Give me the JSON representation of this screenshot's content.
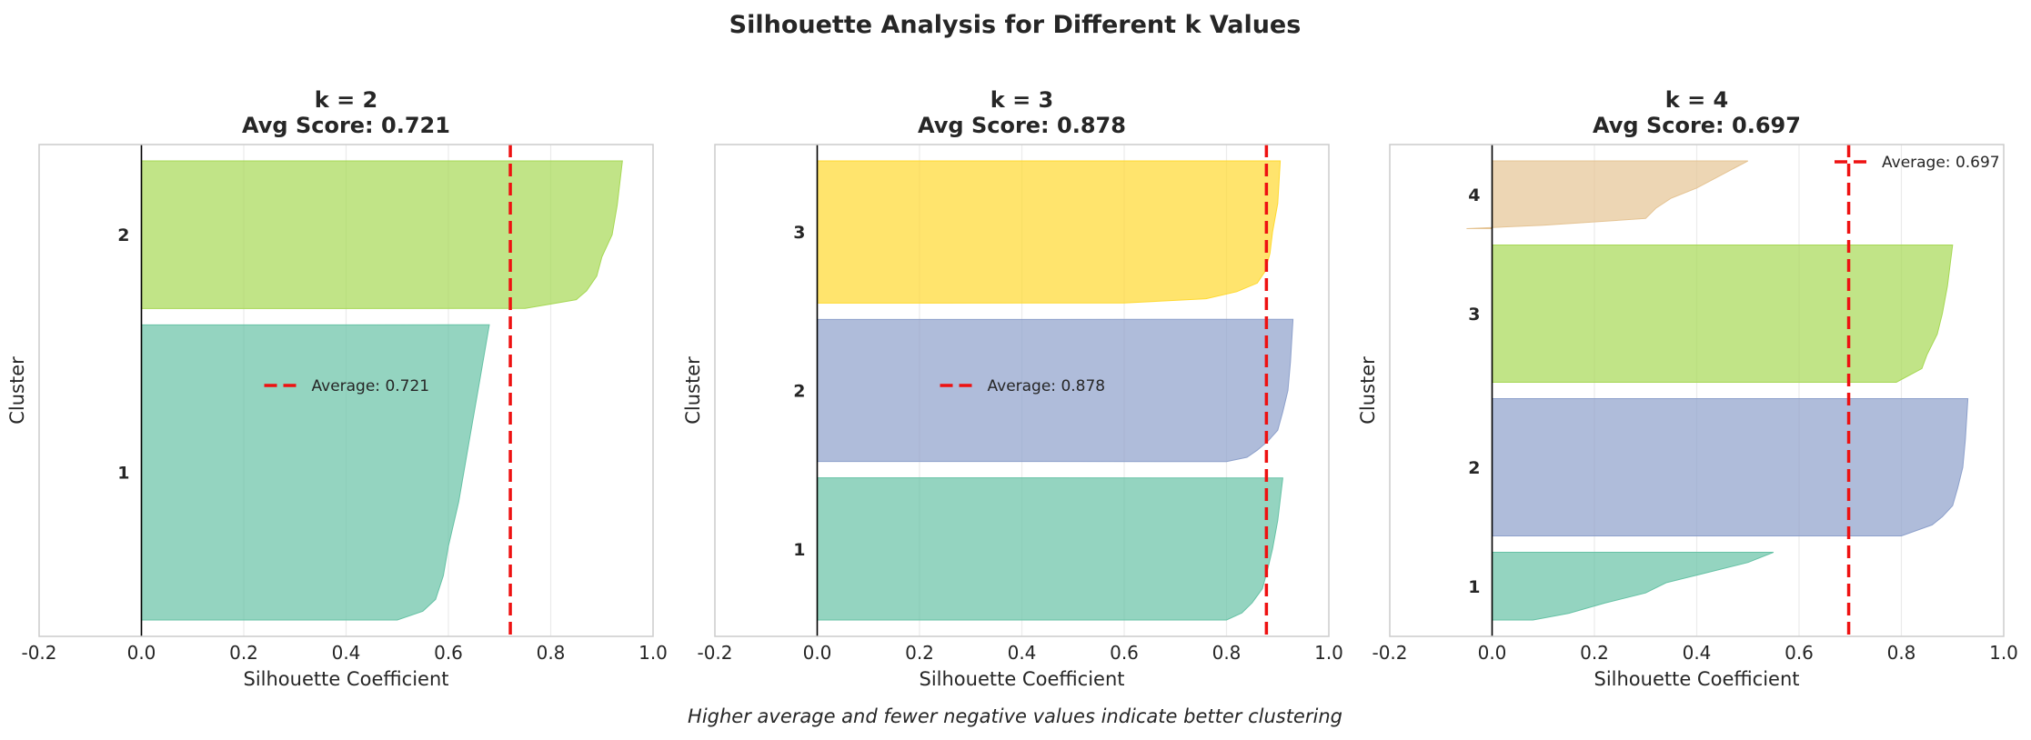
{
  "figure": {
    "title": "Silhouette Analysis for Different k Values",
    "caption": "Higher average and fewer negative values indicate better clustering"
  },
  "colors": {
    "avg_line": "#ee1111",
    "cluster_palette": [
      "#66c2a5",
      "#8da0cb",
      "#a6d854",
      "#ffd92f",
      "#e5c494"
    ]
  },
  "chart_data": [
    {
      "type": "silhouette",
      "title_line1": "k = 2",
      "title_line2": "Avg Score: 0.721",
      "xlabel": "Silhouette Coefficient",
      "ylabel": "Cluster",
      "xlim": [
        -0.2,
        1.0
      ],
      "xticks": [
        "-0.2",
        "0.0",
        "0.2",
        "0.4",
        "0.6",
        "0.8",
        "1.0"
      ],
      "average": 0.721,
      "legend_label": "Average: 0.721",
      "legend_position": "center",
      "clusters": [
        {
          "label": "1",
          "size": 150,
          "color": "#66c2a5",
          "profile": [
            [
              0,
              0.68
            ],
            [
              0.2,
              0.66
            ],
            [
              0.4,
              0.64
            ],
            [
              0.6,
              0.62
            ],
            [
              0.75,
              0.6
            ],
            [
              0.85,
              0.59
            ],
            [
              0.93,
              0.575
            ],
            [
              0.97,
              0.55
            ],
            [
              1.0,
              0.5
            ]
          ]
        },
        {
          "label": "2",
          "size": 75,
          "color": "#a6d854",
          "profile": [
            [
              0,
              0.94
            ],
            [
              0.3,
              0.93
            ],
            [
              0.5,
              0.92
            ],
            [
              0.65,
              0.9
            ],
            [
              0.78,
              0.89
            ],
            [
              0.88,
              0.87
            ],
            [
              0.94,
              0.85
            ],
            [
              1.0,
              0.75
            ]
          ]
        }
      ]
    },
    {
      "type": "silhouette",
      "title_line1": "k = 3",
      "title_line2": "Avg Score: 0.878",
      "xlabel": "Silhouette Coefficient",
      "ylabel": "Cluster",
      "xlim": [
        -0.2,
        1.0
      ],
      "xticks": [
        "-0.2",
        "0.0",
        "0.2",
        "0.4",
        "0.6",
        "0.8",
        "1.0"
      ],
      "average": 0.878,
      "legend_label": "Average: 0.878",
      "legend_position": "center",
      "clusters": [
        {
          "label": "1",
          "size": 75,
          "color": "#66c2a5",
          "profile": [
            [
              0,
              0.91
            ],
            [
              0.3,
              0.9
            ],
            [
              0.5,
              0.89
            ],
            [
              0.65,
              0.88
            ],
            [
              0.78,
              0.87
            ],
            [
              0.88,
              0.85
            ],
            [
              0.95,
              0.83
            ],
            [
              1.0,
              0.8
            ]
          ]
        },
        {
          "label": "2",
          "size": 75,
          "color": "#8da0cb",
          "profile": [
            [
              0,
              0.93
            ],
            [
              0.3,
              0.925
            ],
            [
              0.5,
              0.92
            ],
            [
              0.65,
              0.91
            ],
            [
              0.78,
              0.9
            ],
            [
              0.86,
              0.88
            ],
            [
              0.92,
              0.86
            ],
            [
              0.97,
              0.84
            ],
            [
              1.0,
              0.8
            ]
          ]
        },
        {
          "label": "3",
          "size": 75,
          "color": "#ffd92f",
          "profile": [
            [
              0,
              0.905
            ],
            [
              0.3,
              0.9
            ],
            [
              0.5,
              0.89
            ],
            [
              0.65,
              0.885
            ],
            [
              0.78,
              0.875
            ],
            [
              0.86,
              0.86
            ],
            [
              0.92,
              0.82
            ],
            [
              0.97,
              0.76
            ],
            [
              1.0,
              0.6
            ]
          ]
        }
      ]
    },
    {
      "type": "silhouette",
      "title_line1": "k = 4",
      "title_line2": "Avg Score: 0.697",
      "xlabel": "Silhouette Coefficient",
      "ylabel": "Cluster",
      "xlim": [
        -0.2,
        1.0
      ],
      "xticks": [
        "-0.2",
        "0.0",
        "0.2",
        "0.4",
        "0.6",
        "0.8",
        "1.0"
      ],
      "average": 0.697,
      "legend_label": "Average: 0.697",
      "legend_position": "top-right",
      "clusters": [
        {
          "label": "1",
          "size": 37,
          "color": "#66c2a5",
          "profile": [
            [
              0,
              0.55
            ],
            [
              0.15,
              0.5
            ],
            [
              0.3,
              0.42
            ],
            [
              0.45,
              0.34
            ],
            [
              0.6,
              0.3
            ],
            [
              0.75,
              0.22
            ],
            [
              0.9,
              0.15
            ],
            [
              1.0,
              0.08
            ]
          ]
        },
        {
          "label": "2",
          "size": 75,
          "color": "#8da0cb",
          "profile": [
            [
              0,
              0.93
            ],
            [
              0.3,
              0.925
            ],
            [
              0.5,
              0.92
            ],
            [
              0.65,
              0.91
            ],
            [
              0.78,
              0.9
            ],
            [
              0.86,
              0.88
            ],
            [
              0.92,
              0.86
            ],
            [
              1.0,
              0.8
            ]
          ]
        },
        {
          "label": "3",
          "size": 75,
          "color": "#a6d854",
          "profile": [
            [
              0,
              0.9
            ],
            [
              0.3,
              0.89
            ],
            [
              0.5,
              0.88
            ],
            [
              0.65,
              0.87
            ],
            [
              0.8,
              0.85
            ],
            [
              0.9,
              0.84
            ],
            [
              1.0,
              0.79
            ]
          ]
        },
        {
          "label": "4",
          "size": 37,
          "color": "#e5c494",
          "profile": [
            [
              0,
              0.5
            ],
            [
              0.2,
              0.45
            ],
            [
              0.4,
              0.4
            ],
            [
              0.55,
              0.35
            ],
            [
              0.7,
              0.32
            ],
            [
              0.85,
              0.3
            ],
            [
              0.95,
              0.1
            ],
            [
              1.0,
              -0.05
            ]
          ]
        }
      ]
    }
  ]
}
